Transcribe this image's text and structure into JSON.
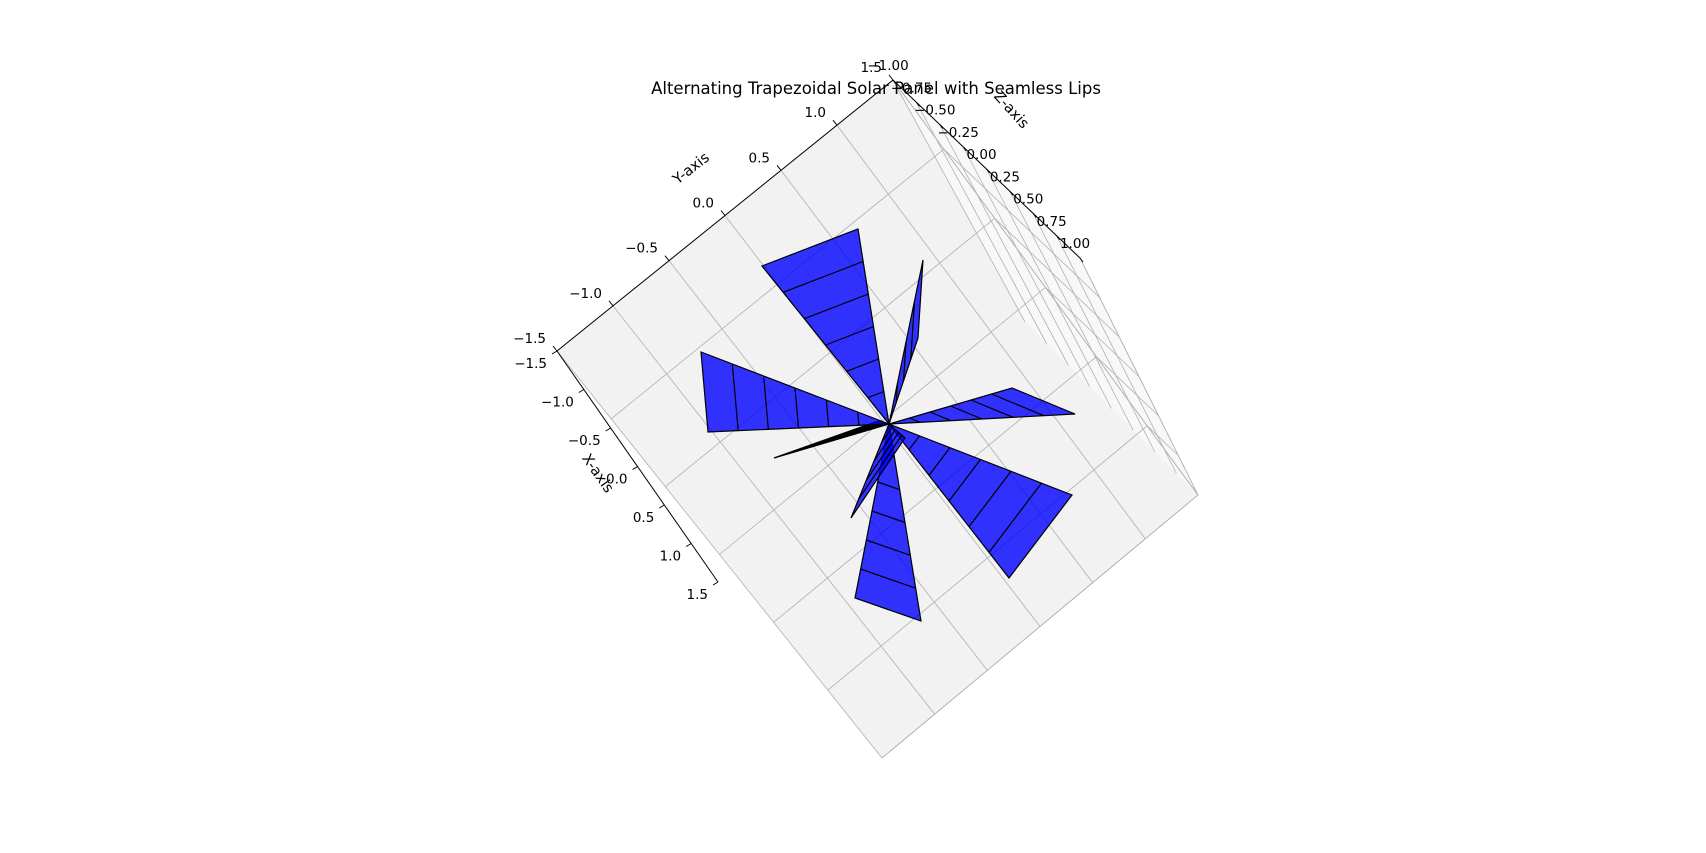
{
  "chart_data": {
    "type": "3d-surface",
    "title": "Alternating Trapezoidal Solar Panel with Seamless Lips",
    "xlabel": "X-axis",
    "ylabel": "Y-axis",
    "zlabel": "Z-axis",
    "xlim": [
      -1.5,
      1.5
    ],
    "ylim": [
      -1.5,
      1.5
    ],
    "zlim": [
      -1.0,
      1.0
    ],
    "xticks": [
      "−1.5",
      "−1.0",
      "−0.5",
      "0.0",
      "0.5",
      "1.0",
      "1.5"
    ],
    "yticks": [
      "−1.5",
      "−1.0",
      "−0.5",
      "0.0",
      "0.5",
      "1.0",
      "1.5"
    ],
    "zticks": [
      "−1.00",
      "−0.75",
      "−0.50",
      "−0.25",
      "0.00",
      "0.25",
      "0.50",
      "0.75",
      "1.00"
    ],
    "grid": true,
    "panel_color": "#0000ff",
    "panel_edge_color": "#000000",
    "pane_colors": {
      "floor": "#f2f2f2",
      "side": "#f8f8f8"
    },
    "grid_color": "#b0b0b0",
    "panels": 8
  }
}
